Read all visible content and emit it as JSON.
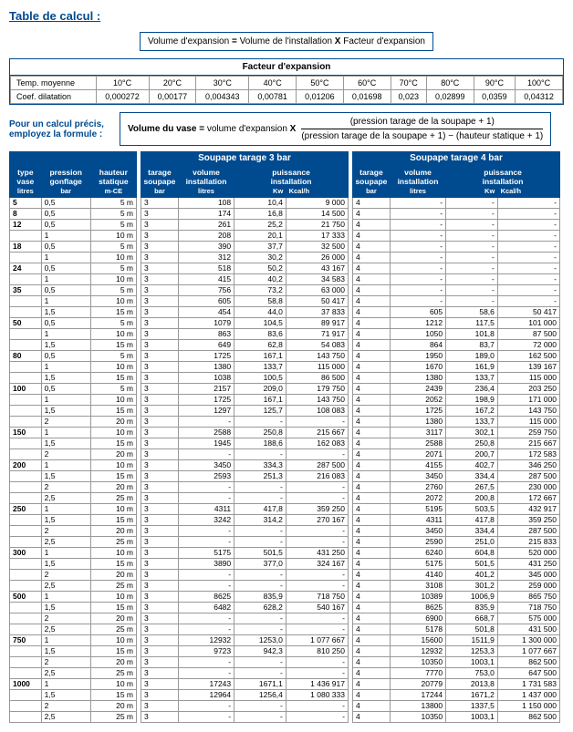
{
  "title": "Table de calcul :",
  "formula1": {
    "lhs": "Volume d'expansion",
    "eq": "=",
    "mid": "Volume de l'installation",
    "x": "X",
    "rhs": "Facteur d'expansion"
  },
  "expansion": {
    "header": "Facteur d'expansion",
    "row1label": "Temp. moyenne",
    "row2label": "Coef. dilatation",
    "temps": [
      "10°C",
      "20°C",
      "30°C",
      "40°C",
      "50°C",
      "60°C",
      "70°C",
      "80°C",
      "90°C",
      "100°C"
    ],
    "coefs": [
      "0,000272",
      "0,00177",
      "0,004343",
      "0,00781",
      "0,01206",
      "0,01698",
      "0,023",
      "0,02899",
      "0,0359",
      "0,04312"
    ]
  },
  "precis": "Pour un calcul précis, employez la formule :",
  "formula2": {
    "lhs": "Volume du vase",
    "eq": "=",
    "mid": "volume d'expansion",
    "x": "X",
    "top": "(pression tarage de la soupape + 1)",
    "bot": "(pression tarage de la soupape + 1) − (hauteur statique + 1)"
  },
  "hdrLeft": {
    "c1a": "type",
    "c1b": "vase",
    "c1c": "litres",
    "c2a": "pression",
    "c2b": "gonflage",
    "c2c": "bar",
    "c3a": "hauteur",
    "c3b": "statique",
    "c3c": "m-CE"
  },
  "hdrMid": "Soupape tarage 3 bar",
  "hdrRight": "Soupape tarage 4 bar",
  "hdrCols": {
    "c1a": "tarage",
    "c1b": "soupape",
    "c1c": "bar",
    "c2a": "volume",
    "c2b": "installation",
    "c2c": "litres",
    "c3a": "puissance",
    "c3b": "installation",
    "kw": "Kw",
    "kc": "Kcal/h"
  },
  "rows": [
    {
      "t": "5",
      "p": "0,5",
      "h": "5 m",
      "s3": "3",
      "v3": "108",
      "k3": "10,4",
      "q3": "9 000",
      "s4": "4",
      "v4": "-",
      "k4": "-",
      "q4": "-"
    },
    {
      "t": "8",
      "p": "0,5",
      "h": "5 m",
      "s3": "3",
      "v3": "174",
      "k3": "16,8",
      "q3": "14 500",
      "s4": "4",
      "v4": "-",
      "k4": "-",
      "q4": "-"
    },
    {
      "t": "12",
      "p": "0,5",
      "h": "5 m",
      "s3": "3",
      "v3": "261",
      "k3": "25,2",
      "q3": "21 750",
      "s4": "4",
      "v4": "-",
      "k4": "-",
      "q4": "-"
    },
    {
      "t": "",
      "p": "1",
      "h": "10 m",
      "s3": "3",
      "v3": "208",
      "k3": "20,1",
      "q3": "17 333",
      "s4": "4",
      "v4": "-",
      "k4": "-",
      "q4": "-"
    },
    {
      "t": "18",
      "p": "0,5",
      "h": "5 m",
      "s3": "3",
      "v3": "390",
      "k3": "37,7",
      "q3": "32 500",
      "s4": "4",
      "v4": "-",
      "k4": "-",
      "q4": "-"
    },
    {
      "t": "",
      "p": "1",
      "h": "10 m",
      "s3": "3",
      "v3": "312",
      "k3": "30,2",
      "q3": "26 000",
      "s4": "4",
      "v4": "-",
      "k4": "-",
      "q4": "-"
    },
    {
      "t": "24",
      "p": "0,5",
      "h": "5 m",
      "s3": "3",
      "v3": "518",
      "k3": "50,2",
      "q3": "43 167",
      "s4": "4",
      "v4": "-",
      "k4": "-",
      "q4": "-"
    },
    {
      "t": "",
      "p": "1",
      "h": "10 m",
      "s3": "3",
      "v3": "415",
      "k3": "40,2",
      "q3": "34 583",
      "s4": "4",
      "v4": "-",
      "k4": "-",
      "q4": "-"
    },
    {
      "t": "35",
      "p": "0,5",
      "h": "5 m",
      "s3": "3",
      "v3": "756",
      "k3": "73,2",
      "q3": "63 000",
      "s4": "4",
      "v4": "-",
      "k4": "-",
      "q4": "-"
    },
    {
      "t": "",
      "p": "1",
      "h": "10 m",
      "s3": "3",
      "v3": "605",
      "k3": "58,8",
      "q3": "50 417",
      "s4": "4",
      "v4": "-",
      "k4": "-",
      "q4": "-"
    },
    {
      "t": "",
      "p": "1,5",
      "h": "15 m",
      "s3": "3",
      "v3": "454",
      "k3": "44,0",
      "q3": "37 833",
      "s4": "4",
      "v4": "605",
      "k4": "58,6",
      "q4": "50 417"
    },
    {
      "t": "50",
      "p": "0,5",
      "h": "5 m",
      "s3": "3",
      "v3": "1079",
      "k3": "104,5",
      "q3": "89 917",
      "s4": "4",
      "v4": "1212",
      "k4": "117,5",
      "q4": "101 000"
    },
    {
      "t": "",
      "p": "1",
      "h": "10 m",
      "s3": "3",
      "v3": "863",
      "k3": "83,6",
      "q3": "71 917",
      "s4": "4",
      "v4": "1050",
      "k4": "101,8",
      "q4": "87 500"
    },
    {
      "t": "",
      "p": "1,5",
      "h": "15 m",
      "s3": "3",
      "v3": "649",
      "k3": "62,8",
      "q3": "54 083",
      "s4": "4",
      "v4": "864",
      "k4": "83,7",
      "q4": "72 000"
    },
    {
      "t": "80",
      "p": "0,5",
      "h": "5 m",
      "s3": "3",
      "v3": "1725",
      "k3": "167,1",
      "q3": "143 750",
      "s4": "4",
      "v4": "1950",
      "k4": "189,0",
      "q4": "162 500"
    },
    {
      "t": "",
      "p": "1",
      "h": "10 m",
      "s3": "3",
      "v3": "1380",
      "k3": "133,7",
      "q3": "115 000",
      "s4": "4",
      "v4": "1670",
      "k4": "161,9",
      "q4": "139 167"
    },
    {
      "t": "",
      "p": "1,5",
      "h": "15 m",
      "s3": "3",
      "v3": "1038",
      "k3": "100,5",
      "q3": "86 500",
      "s4": "4",
      "v4": "1380",
      "k4": "133,7",
      "q4": "115 000"
    },
    {
      "t": "100",
      "p": "0,5",
      "h": "5 m",
      "s3": "3",
      "v3": "2157",
      "k3": "209,0",
      "q3": "179 750",
      "s4": "4",
      "v4": "2439",
      "k4": "236,4",
      "q4": "203 250"
    },
    {
      "t": "",
      "p": "1",
      "h": "10 m",
      "s3": "3",
      "v3": "1725",
      "k3": "167,1",
      "q3": "143 750",
      "s4": "4",
      "v4": "2052",
      "k4": "198,9",
      "q4": "171 000"
    },
    {
      "t": "",
      "p": "1,5",
      "h": "15 m",
      "s3": "3",
      "v3": "1297",
      "k3": "125,7",
      "q3": "108 083",
      "s4": "4",
      "v4": "1725",
      "k4": "167,2",
      "q4": "143 750"
    },
    {
      "t": "",
      "p": "2",
      "h": "20 m",
      "s3": "3",
      "v3": "-",
      "k3": "-",
      "q3": "-",
      "s4": "4",
      "v4": "1380",
      "k4": "133,7",
      "q4": "115 000"
    },
    {
      "t": "150",
      "p": "1",
      "h": "10 m",
      "s3": "3",
      "v3": "2588",
      "k3": "250,8",
      "q3": "215 667",
      "s4": "4",
      "v4": "3117",
      "k4": "302,1",
      "q4": "259 750"
    },
    {
      "t": "",
      "p": "1,5",
      "h": "15 m",
      "s3": "3",
      "v3": "1945",
      "k3": "188,6",
      "q3": "162 083",
      "s4": "4",
      "v4": "2588",
      "k4": "250,8",
      "q4": "215 667"
    },
    {
      "t": "",
      "p": "2",
      "h": "20 m",
      "s3": "3",
      "v3": "-",
      "k3": "-",
      "q3": "-",
      "s4": "4",
      "v4": "2071",
      "k4": "200,7",
      "q4": "172 583"
    },
    {
      "t": "200",
      "p": "1",
      "h": "10 m",
      "s3": "3",
      "v3": "3450",
      "k3": "334,3",
      "q3": "287 500",
      "s4": "4",
      "v4": "4155",
      "k4": "402,7",
      "q4": "346 250"
    },
    {
      "t": "",
      "p": "1,5",
      "h": "15 m",
      "s3": "3",
      "v3": "2593",
      "k3": "251,3",
      "q3": "216 083",
      "s4": "4",
      "v4": "3450",
      "k4": "334,4",
      "q4": "287 500"
    },
    {
      "t": "",
      "p": "2",
      "h": "20 m",
      "s3": "3",
      "v3": "-",
      "k3": "-",
      "q3": "-",
      "s4": "4",
      "v4": "2760",
      "k4": "267,5",
      "q4": "230 000"
    },
    {
      "t": "",
      "p": "2,5",
      "h": "25 m",
      "s3": "3",
      "v3": "-",
      "k3": "-",
      "q3": "-",
      "s4": "4",
      "v4": "2072",
      "k4": "200,8",
      "q4": "172 667"
    },
    {
      "t": "250",
      "p": "1",
      "h": "10 m",
      "s3": "3",
      "v3": "4311",
      "k3": "417,8",
      "q3": "359 250",
      "s4": "4",
      "v4": "5195",
      "k4": "503,5",
      "q4": "432 917"
    },
    {
      "t": "",
      "p": "1,5",
      "h": "15 m",
      "s3": "3",
      "v3": "3242",
      "k3": "314,2",
      "q3": "270 167",
      "s4": "4",
      "v4": "4311",
      "k4": "417,8",
      "q4": "359 250"
    },
    {
      "t": "",
      "p": "2",
      "h": "20 m",
      "s3": "3",
      "v3": "-",
      "k3": "-",
      "q3": "-",
      "s4": "4",
      "v4": "3450",
      "k4": "334,4",
      "q4": "287 500"
    },
    {
      "t": "",
      "p": "2,5",
      "h": "25 m",
      "s3": "3",
      "v3": "-",
      "k3": "-",
      "q3": "-",
      "s4": "4",
      "v4": "2590",
      "k4": "251,0",
      "q4": "215 833"
    },
    {
      "t": "300",
      "p": "1",
      "h": "10 m",
      "s3": "3",
      "v3": "5175",
      "k3": "501,5",
      "q3": "431 250",
      "s4": "4",
      "v4": "6240",
      "k4": "604,8",
      "q4": "520 000"
    },
    {
      "t": "",
      "p": "1,5",
      "h": "15 m",
      "s3": "3",
      "v3": "3890",
      "k3": "377,0",
      "q3": "324 167",
      "s4": "4",
      "v4": "5175",
      "k4": "501,5",
      "q4": "431 250"
    },
    {
      "t": "",
      "p": "2",
      "h": "20 m",
      "s3": "3",
      "v3": "-",
      "k3": "-",
      "q3": "-",
      "s4": "4",
      "v4": "4140",
      "k4": "401,2",
      "q4": "345 000"
    },
    {
      "t": "",
      "p": "2,5",
      "h": "25 m",
      "s3": "3",
      "v3": "-",
      "k3": "-",
      "q3": "-",
      "s4": "4",
      "v4": "3108",
      "k4": "301,2",
      "q4": "259 000"
    },
    {
      "t": "500",
      "p": "1",
      "h": "10 m",
      "s3": "3",
      "v3": "8625",
      "k3": "835,9",
      "q3": "718 750",
      "s4": "4",
      "v4": "10389",
      "k4": "1006,9",
      "q4": "865 750"
    },
    {
      "t": "",
      "p": "1,5",
      "h": "15 m",
      "s3": "3",
      "v3": "6482",
      "k3": "628,2",
      "q3": "540 167",
      "s4": "4",
      "v4": "8625",
      "k4": "835,9",
      "q4": "718 750"
    },
    {
      "t": "",
      "p": "2",
      "h": "20 m",
      "s3": "3",
      "v3": "-",
      "k3": "-",
      "q3": "-",
      "s4": "4",
      "v4": "6900",
      "k4": "668,7",
      "q4": "575 000"
    },
    {
      "t": "",
      "p": "2,5",
      "h": "25 m",
      "s3": "3",
      "v3": "-",
      "k3": "-",
      "q3": "-",
      "s4": "4",
      "v4": "5178",
      "k4": "501,8",
      "q4": "431 500"
    },
    {
      "t": "750",
      "p": "1",
      "h": "10 m",
      "s3": "3",
      "v3": "12932",
      "k3": "1253,0",
      "q3": "1 077 667",
      "s4": "4",
      "v4": "15600",
      "k4": "1511,9",
      "q4": "1 300 000"
    },
    {
      "t": "",
      "p": "1,5",
      "h": "15 m",
      "s3": "3",
      "v3": "9723",
      "k3": "942,3",
      "q3": "810 250",
      "s4": "4",
      "v4": "12932",
      "k4": "1253,3",
      "q4": "1 077 667"
    },
    {
      "t": "",
      "p": "2",
      "h": "20 m",
      "s3": "3",
      "v3": "-",
      "k3": "-",
      "q3": "-",
      "s4": "4",
      "v4": "10350",
      "k4": "1003,1",
      "q4": "862 500"
    },
    {
      "t": "",
      "p": "2,5",
      "h": "25 m",
      "s3": "3",
      "v3": "-",
      "k3": "-",
      "q3": "-",
      "s4": "4",
      "v4": "7770",
      "k4": "753,0",
      "q4": "647 500"
    },
    {
      "t": "1000",
      "p": "1",
      "h": "10 m",
      "s3": "3",
      "v3": "17243",
      "k3": "1671,1",
      "q3": "1 436 917",
      "s4": "4",
      "v4": "20779",
      "k4": "2013,8",
      "q4": "1 731 583"
    },
    {
      "t": "",
      "p": "1,5",
      "h": "15 m",
      "s3": "3",
      "v3": "12964",
      "k3": "1256,4",
      "q3": "1 080 333",
      "s4": "4",
      "v4": "17244",
      "k4": "1671,2",
      "q4": "1 437 000"
    },
    {
      "t": "",
      "p": "2",
      "h": "20 m",
      "s3": "3",
      "v3": "-",
      "k3": "-",
      "q3": "-",
      "s4": "4",
      "v4": "13800",
      "k4": "1337,5",
      "q4": "1 150 000"
    },
    {
      "t": "",
      "p": "2,5",
      "h": "25 m",
      "s3": "3",
      "v3": "-",
      "k3": "-",
      "q3": "-",
      "s4": "4",
      "v4": "10350",
      "k4": "1003,1",
      "q4": "862 500"
    }
  ]
}
